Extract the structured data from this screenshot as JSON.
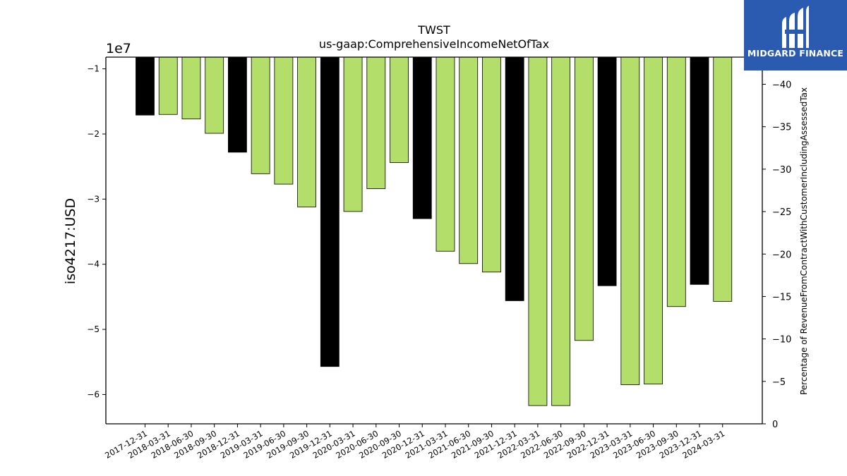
{
  "chart_data": {
    "type": "bar",
    "title": "TWST",
    "subtitle": "us-gaap:ComprehensiveIncomeNetOfTax",
    "ylabel": "iso4217:USD",
    "y_offset_label": "1e7",
    "y2label": "Percentage of RevenueFromContractWithCustomerIncludingAssessedTax",
    "ylim": [
      -64500000,
      -8200000
    ],
    "y2lim": [
      0,
      43.2
    ],
    "y_ticks": [
      -10000000,
      -20000000,
      -30000000,
      -40000000,
      -50000000,
      -60000000
    ],
    "y_tick_labels": [
      "−1",
      "−2",
      "−3",
      "−4",
      "−5",
      "−6"
    ],
    "y2_ticks": [
      0,
      5,
      10,
      15,
      20,
      25,
      30,
      35,
      40
    ],
    "y2_tick_labels": [
      "0",
      "−5",
      "−10",
      "−15",
      "−20",
      "−25",
      "−30",
      "−35",
      "−40"
    ],
    "categories": [
      "2017-12-31",
      "2018-03-31",
      "2018-06-30",
      "2018-09-30",
      "2018-12-31",
      "2019-03-31",
      "2019-06-30",
      "2019-09-30",
      "2019-12-31",
      "2020-03-31",
      "2020-06-30",
      "2020-09-30",
      "2020-12-31",
      "2021-03-31",
      "2021-06-30",
      "2021-09-30",
      "2021-12-31",
      "2022-03-31",
      "2022-06-30",
      "2022-09-30",
      "2022-12-31",
      "2023-03-31",
      "2023-06-30",
      "2023-09-30",
      "2023-12-31",
      "2024-03-31"
    ],
    "values": [
      -17100000,
      -17000000,
      -17700000,
      -19900000,
      -22800000,
      -26100000,
      -27700000,
      -31200000,
      -55700000,
      -31900000,
      -28400000,
      -24400000,
      -33000000,
      -38000000,
      -39900000,
      -41200000,
      -45600000,
      -61700000,
      -61700000,
      -51700000,
      -43300000,
      -58500000,
      -58400000,
      -46500000,
      -43100000,
      -45700000
    ],
    "annual": [
      true,
      false,
      false,
      false,
      true,
      false,
      false,
      false,
      true,
      false,
      false,
      false,
      true,
      false,
      false,
      false,
      true,
      false,
      false,
      false,
      true,
      false,
      false,
      false,
      true,
      false
    ],
    "colors": {
      "annual": "#000000",
      "quarterly": "#b3de69",
      "edge": "#000000"
    },
    "grid": false,
    "legend": "none"
  },
  "logo": {
    "name": "MIDGARD FINANCE",
    "bg_color": "#2b5bb0"
  }
}
